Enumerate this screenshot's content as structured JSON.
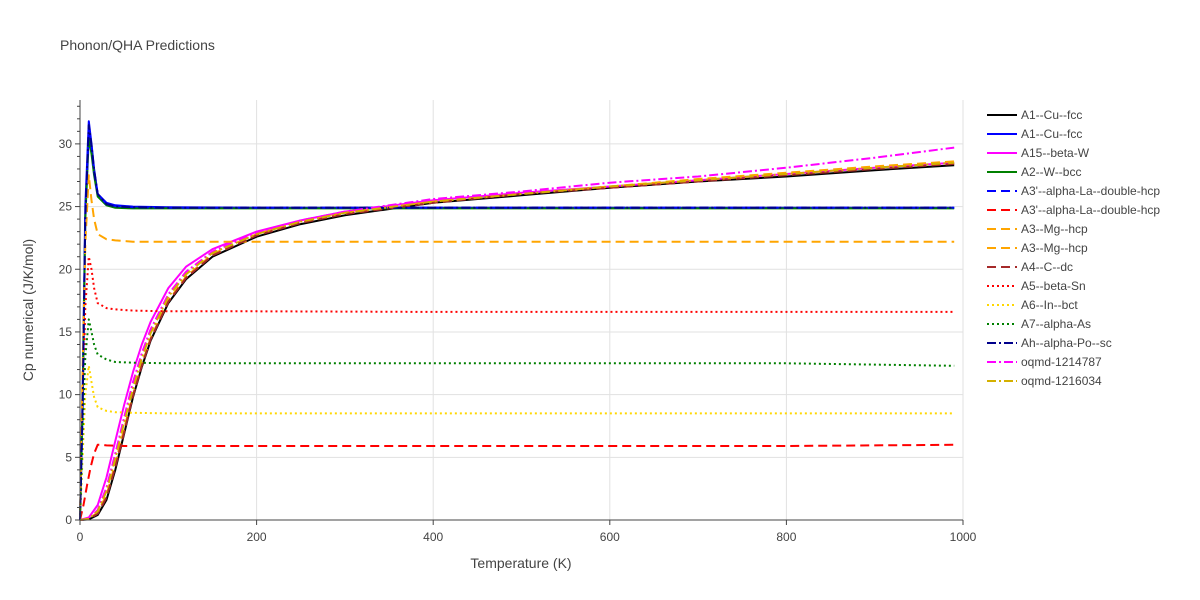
{
  "chart_data": {
    "type": "line",
    "title": "Phonon/QHA Predictions",
    "xlabel": "Temperature (K)",
    "ylabel": "Cp numerical (J/K/mol)",
    "xlim": [
      0,
      1000
    ],
    "ylim": [
      0,
      33.5
    ],
    "xticks": [
      0,
      200,
      400,
      600,
      800,
      1000
    ],
    "yticks": [
      0,
      5,
      10,
      15,
      20,
      25,
      30
    ],
    "grid": true,
    "legend_position": "right",
    "series": [
      {
        "name": "A1--Cu--fcc",
        "color": "#000000",
        "dash": "solid",
        "x": [
          0,
          10,
          20,
          30,
          40,
          50,
          60,
          70,
          80,
          100,
          120,
          150,
          200,
          250,
          300,
          400,
          500,
          600,
          700,
          800,
          900,
          990
        ],
        "y": [
          0,
          0.05,
          0.4,
          1.6,
          4.0,
          6.9,
          9.8,
          12.2,
          14.3,
          17.3,
          19.2,
          21.0,
          22.6,
          23.6,
          24.3,
          25.3,
          25.9,
          26.5,
          27.0,
          27.4,
          27.9,
          28.3
        ]
      },
      {
        "name": "A1--Cu--fcc",
        "color": "#0000ff",
        "dash": "solid",
        "x": [
          0,
          3,
          6,
          10,
          13,
          16,
          20,
          30,
          40,
          60,
          100,
          200,
          400,
          600,
          800,
          990
        ],
        "y": [
          0,
          10,
          25,
          31.8,
          30.0,
          28.0,
          26.0,
          25.3,
          25.1,
          25.0,
          24.95,
          24.9,
          24.9,
          24.9,
          24.9,
          24.9
        ]
      },
      {
        "name": "A15--beta-W",
        "color": "#ff00ff",
        "dash": "solid",
        "x": [
          0,
          10,
          20,
          30,
          40,
          50,
          60,
          70,
          80,
          100,
          120,
          150,
          200,
          250,
          300,
          400,
          500,
          600,
          700,
          800,
          900,
          990
        ],
        "y": [
          0,
          0.2,
          1.2,
          3.4,
          6.3,
          9.2,
          11.8,
          14.0,
          15.8,
          18.5,
          20.2,
          21.6,
          23.0,
          23.9,
          24.6,
          25.5,
          26.1,
          26.6,
          27.1,
          27.6,
          28.1,
          28.5
        ]
      },
      {
        "name": "A2--W--bcc",
        "color": "#008000",
        "dash": "solid",
        "x": [
          0,
          3,
          6,
          10,
          13,
          16,
          20,
          30,
          40,
          60,
          100,
          200,
          400,
          600,
          800,
          990
        ],
        "y": [
          0,
          9,
          24,
          30.5,
          29.2,
          27.5,
          25.8,
          25.1,
          24.9,
          24.85,
          24.85,
          24.85,
          24.85,
          24.85,
          24.85,
          24.85
        ]
      },
      {
        "name": "A3'--alpha-La--double-hcp",
        "color": "#0000ff",
        "dash": "dash",
        "x": [
          0,
          3,
          6,
          10,
          13,
          16,
          20,
          30,
          40,
          60,
          100,
          200,
          400,
          600,
          800,
          990
        ],
        "y": [
          0,
          9,
          24,
          31.2,
          29.8,
          27.8,
          26.0,
          25.2,
          25.05,
          24.95,
          24.9,
          24.9,
          24.9,
          24.9,
          24.9,
          24.9
        ]
      },
      {
        "name": "A3'--alpha-La--double-hcp",
        "color": "#ff0000",
        "dash": "dash",
        "x": [
          0,
          4,
          8,
          12,
          16,
          20,
          25,
          30,
          50,
          100,
          200,
          400,
          600,
          800,
          990
        ],
        "y": [
          0,
          1.2,
          2.8,
          4.2,
          5.3,
          6.0,
          6.0,
          5.95,
          5.9,
          5.9,
          5.9,
          5.9,
          5.9,
          5.9,
          6.0
        ]
      },
      {
        "name": "A3--Mg--hcp",
        "color": "#ffa500",
        "dash": "dash",
        "x": [
          0,
          3,
          6,
          10,
          13,
          16,
          20,
          30,
          40,
          60,
          100,
          200,
          400,
          600,
          800,
          990
        ],
        "y": [
          0,
          12,
          22,
          27.5,
          25.5,
          24.0,
          22.8,
          22.4,
          22.3,
          22.2,
          22.2,
          22.2,
          22.2,
          22.2,
          22.2,
          22.2
        ]
      },
      {
        "name": "A3--Mg--hcp",
        "color": "#ffa500",
        "dash": "dash",
        "x": [
          0,
          10,
          20,
          30,
          40,
          50,
          60,
          70,
          80,
          100,
          120,
          150,
          200,
          250,
          300,
          400,
          500,
          600,
          700,
          800,
          900,
          990
        ],
        "y": [
          0,
          0.1,
          0.6,
          2.0,
          4.5,
          7.3,
          10.0,
          12.4,
          14.5,
          17.5,
          19.4,
          21.2,
          22.8,
          23.8,
          24.5,
          25.4,
          26.0,
          26.6,
          27.2,
          27.7,
          28.2,
          28.6
        ]
      },
      {
        "name": "A4--C--dc",
        "color": "#a52a2a",
        "dash": "dash",
        "x": [
          0,
          10,
          20,
          30,
          40,
          50,
          60,
          70,
          80,
          100,
          120,
          150,
          200,
          250,
          300,
          400,
          500,
          600,
          700,
          800,
          900,
          990
        ],
        "y": [
          0,
          0.08,
          0.5,
          1.8,
          4.2,
          7.0,
          9.9,
          12.3,
          14.4,
          17.4,
          19.3,
          21.1,
          22.7,
          23.7,
          24.4,
          25.3,
          26.0,
          26.5,
          27.0,
          27.5,
          28.0,
          28.4
        ]
      },
      {
        "name": "A5--beta-Sn",
        "color": "#ff0000",
        "dash": "dot",
        "x": [
          0,
          3,
          6,
          10,
          13,
          16,
          20,
          30,
          40,
          60,
          100,
          200,
          400,
          600,
          800,
          990
        ],
        "y": [
          0,
          8,
          17,
          21.0,
          20.0,
          18.5,
          17.3,
          16.9,
          16.8,
          16.7,
          16.65,
          16.65,
          16.6,
          16.6,
          16.6,
          16.6
        ]
      },
      {
        "name": "A6--In--bct",
        "color": "#ffd700",
        "dash": "dot",
        "x": [
          0,
          3,
          6,
          10,
          13,
          16,
          20,
          30,
          40,
          60,
          100,
          200,
          400,
          600,
          800,
          990
        ],
        "y": [
          0,
          5,
          10,
          12.3,
          11.0,
          9.8,
          9.0,
          8.7,
          8.6,
          8.55,
          8.5,
          8.5,
          8.5,
          8.5,
          8.5,
          8.5
        ]
      },
      {
        "name": "A7--alpha-As",
        "color": "#008000",
        "dash": "dot",
        "x": [
          0,
          3,
          6,
          10,
          13,
          16,
          20,
          30,
          40,
          60,
          100,
          200,
          400,
          600,
          800,
          990
        ],
        "y": [
          0,
          7,
          13,
          16.0,
          15.0,
          14.0,
          13.2,
          12.8,
          12.6,
          12.55,
          12.5,
          12.5,
          12.5,
          12.5,
          12.5,
          12.3
        ]
      },
      {
        "name": "Ah--alpha-Po--sc",
        "color": "#00008b",
        "dash": "dashdot",
        "x": [
          0,
          3,
          6,
          10,
          13,
          16,
          20,
          30,
          40,
          60,
          100,
          200,
          400,
          600,
          800,
          990
        ],
        "y": [
          0,
          9,
          24,
          31.5,
          29.9,
          27.9,
          26.0,
          25.2,
          25.0,
          24.95,
          24.9,
          24.9,
          24.9,
          24.9,
          24.9,
          24.9
        ]
      },
      {
        "name": "oqmd-1214787",
        "color": "#ff00ff",
        "dash": "dashdot",
        "x": [
          0,
          10,
          20,
          30,
          40,
          50,
          60,
          70,
          80,
          100,
          120,
          150,
          200,
          250,
          300,
          400,
          500,
          600,
          700,
          800,
          900,
          990
        ],
        "y": [
          0,
          0.1,
          0.8,
          2.6,
          5.3,
          8.2,
          11.0,
          13.3,
          15.2,
          18.0,
          19.8,
          21.4,
          22.9,
          23.9,
          24.6,
          25.6,
          26.2,
          26.9,
          27.4,
          28.1,
          28.9,
          29.7
        ]
      },
      {
        "name": "oqmd-1216034",
        "color": "#d4b000",
        "dash": "dashdot",
        "x": [
          0,
          10,
          20,
          30,
          40,
          50,
          60,
          70,
          80,
          100,
          120,
          150,
          200,
          250,
          300,
          400,
          500,
          600,
          700,
          800,
          900,
          990
        ],
        "y": [
          0,
          0.1,
          0.7,
          2.3,
          4.9,
          7.8,
          10.5,
          12.9,
          14.9,
          17.8,
          19.6,
          21.3,
          22.8,
          23.8,
          24.5,
          25.4,
          26.0,
          26.6,
          27.1,
          27.6,
          28.1,
          28.5
        ]
      }
    ]
  }
}
